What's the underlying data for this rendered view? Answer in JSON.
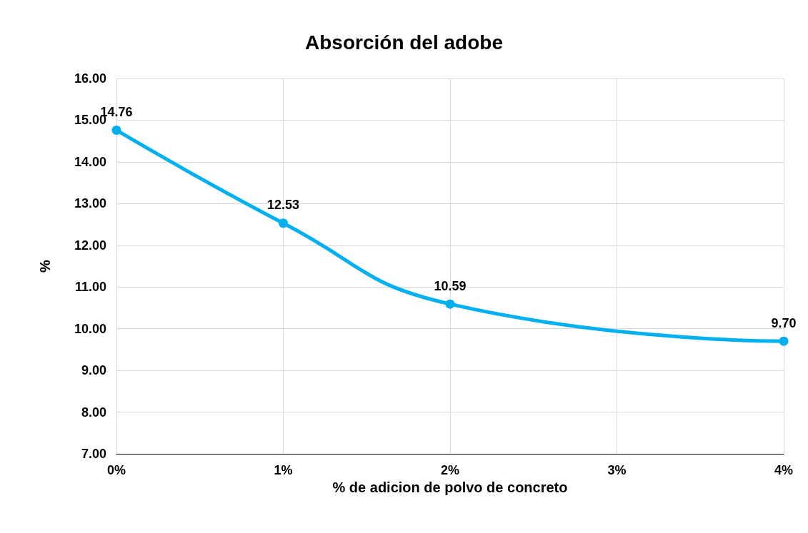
{
  "chart_data": {
    "type": "line",
    "title": "Absorción del adobe",
    "xlabel": "% de adicion de polvo de concreto",
    "ylabel": "%",
    "categories": [
      "0%",
      "1%",
      "2%",
      "3%",
      "4%"
    ],
    "series": [
      {
        "color": "#00b0f0",
        "values": [
          14.76,
          12.53,
          10.59,
          null,
          9.7
        ],
        "value_labels": [
          "14.76",
          "12.53",
          "10.59",
          null,
          "9.70"
        ]
      }
    ],
    "ylim": [
      7,
      16
    ],
    "yticks": [
      {
        "value": 7,
        "label": "7.00"
      },
      {
        "value": 8,
        "label": "8.00"
      },
      {
        "value": 9,
        "label": "9.00"
      },
      {
        "value": 10,
        "label": "10.00"
      },
      {
        "value": 11,
        "label": "11.00"
      },
      {
        "value": 12,
        "label": "12.00"
      },
      {
        "value": 13,
        "label": "13.00"
      },
      {
        "value": 14,
        "label": "14.00"
      },
      {
        "value": 15,
        "label": "15.00"
      },
      {
        "value": 16,
        "label": "16.00"
      }
    ],
    "grid": true,
    "marker": "circle",
    "line_style": "solid"
  }
}
